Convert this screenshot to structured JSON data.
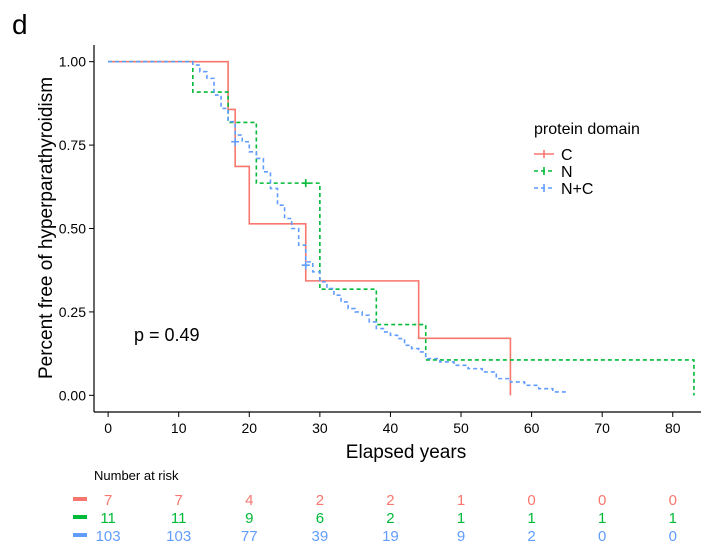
{
  "panel_label": "d",
  "colors": {
    "C": "#F8766D",
    "N": "#00BA38",
    "N+C": "#619CFF",
    "axis": "#000000"
  },
  "risk_table": {
    "title": "Number at risk",
    "rows": [
      {
        "group": "C",
        "color": "#F8766D",
        "counts": [
          "7",
          "7",
          "4",
          "2",
          "2",
          "1",
          "0",
          "0",
          "0"
        ]
      },
      {
        "group": "N",
        "color": "#00BA38",
        "counts": [
          "11",
          "11",
          "9",
          "6",
          "2",
          "1",
          "1",
          "1",
          "1"
        ]
      },
      {
        "group": "N+C",
        "color": "#619CFF",
        "counts": [
          "103",
          "103",
          "77",
          "39",
          "19",
          "9",
          "2",
          "0",
          "0"
        ]
      }
    ]
  },
  "chart_data": {
    "type": "line",
    "subtype": "kaplan-meier step",
    "title": "",
    "xlabel": "Elapsed years",
    "ylabel": "Percent free of hyperparathyroidism",
    "xlim": [
      -2,
      84
    ],
    "ylim": [
      -0.05,
      1.05
    ],
    "x_ticks": [
      0,
      10,
      20,
      30,
      40,
      50,
      60,
      70,
      80
    ],
    "y_ticks": [
      0.0,
      0.25,
      0.5,
      0.75,
      1.0
    ],
    "y_tick_labels": [
      "0.00",
      "0.25",
      "0.50",
      "0.75",
      "1.00"
    ],
    "grid": false,
    "annotation": "p = 0.49",
    "legend": {
      "title": "protein domain",
      "position": "right",
      "entries": [
        "C",
        "N",
        "N+C"
      ]
    },
    "series": [
      {
        "name": "C",
        "color": "#F8766D",
        "dash": "solid",
        "x": [
          0,
          17,
          18,
          20,
          28,
          44,
          57,
          57
        ],
        "y": [
          1.0,
          0.857,
          0.686,
          0.514,
          0.343,
          0.171,
          0.171,
          0.0
        ],
        "censor": []
      },
      {
        "name": "N",
        "color": "#00BA38",
        "dash": "dashed",
        "x": [
          0,
          12,
          17,
          21,
          23,
          30,
          38,
          45,
          83,
          83
        ],
        "y": [
          1.0,
          0.909,
          0.818,
          0.636,
          0.636,
          0.318,
          0.212,
          0.106,
          0.106,
          0.0
        ],
        "censor": [
          [
            28,
            0.636
          ]
        ]
      },
      {
        "name": "N+C",
        "color": "#619CFF",
        "dash": "dashed",
        "x": [
          0,
          12,
          13,
          14,
          15,
          16,
          17,
          18,
          19,
          20,
          21,
          22,
          23,
          24,
          25,
          26,
          27,
          28,
          29,
          30,
          31,
          32,
          33,
          34,
          35,
          36,
          37,
          38,
          39,
          40,
          41,
          42,
          43,
          44,
          45,
          47,
          49,
          51,
          53,
          55,
          57,
          59,
          61,
          63,
          65
        ],
        "y": [
          1.0,
          0.99,
          0.97,
          0.95,
          0.9,
          0.86,
          0.82,
          0.78,
          0.76,
          0.73,
          0.71,
          0.67,
          0.62,
          0.57,
          0.53,
          0.5,
          0.45,
          0.4,
          0.37,
          0.34,
          0.32,
          0.3,
          0.28,
          0.26,
          0.25,
          0.24,
          0.22,
          0.2,
          0.19,
          0.18,
          0.17,
          0.15,
          0.14,
          0.13,
          0.11,
          0.1,
          0.09,
          0.08,
          0.07,
          0.05,
          0.04,
          0.03,
          0.02,
          0.01,
          0.01
        ],
        "censor": [
          [
            18,
            0.76
          ],
          [
            28,
            0.39
          ]
        ]
      }
    ]
  }
}
